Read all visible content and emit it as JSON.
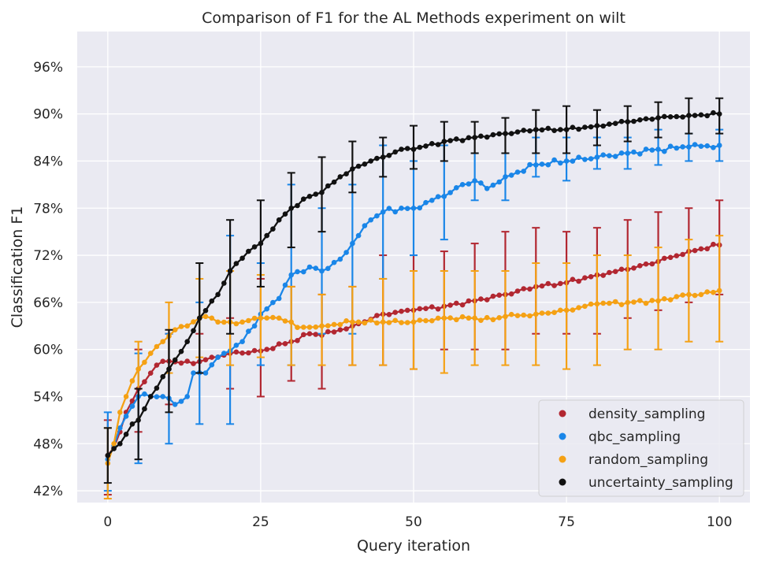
{
  "chart_data": {
    "type": "line",
    "title": "Comparison of F1 for the AL Methods experiment on wilt",
    "xlabel": "Query iteration",
    "ylabel": "Classification F1",
    "xlim": [
      -5,
      105
    ],
    "ylim": [
      40.5,
      100.5
    ],
    "x_ticks": [
      0,
      25,
      50,
      75,
      100
    ],
    "y_ticks": [
      42,
      48,
      54,
      60,
      66,
      72,
      78,
      84,
      90,
      96
    ],
    "y_tick_labels": [
      "42%",
      "48%",
      "54%",
      "60%",
      "66%",
      "72%",
      "78%",
      "84%",
      "90%",
      "96%"
    ],
    "grid": true,
    "legend_position": "lower-right",
    "series": [
      {
        "name": "density_sampling",
        "color": "#b22731",
        "anchors": [
          [
            0,
            46.5
          ],
          [
            1,
            47.5
          ],
          [
            2,
            49.5
          ],
          [
            3,
            52
          ],
          [
            5,
            55
          ],
          [
            8,
            58
          ],
          [
            10,
            58.5
          ],
          [
            14,
            58.2
          ],
          [
            17,
            59
          ],
          [
            20,
            59.5
          ],
          [
            25,
            59.8
          ],
          [
            30,
            61
          ],
          [
            33,
            62
          ],
          [
            35,
            61.8
          ],
          [
            40,
            63
          ],
          [
            45,
            64.5
          ],
          [
            50,
            65
          ],
          [
            55,
            65.5
          ],
          [
            60,
            66.2
          ],
          [
            65,
            67
          ],
          [
            70,
            68
          ],
          [
            75,
            68.5
          ],
          [
            80,
            69.5
          ],
          [
            85,
            70.2
          ],
          [
            90,
            71.2
          ],
          [
            95,
            72.5
          ],
          [
            100,
            73.3
          ]
        ],
        "error_bars": [
          [
            0,
            41.5,
            51
          ],
          [
            5,
            49.5,
            60
          ],
          [
            10,
            53,
            62
          ],
          [
            15,
            57,
            62
          ],
          [
            20,
            55,
            64
          ],
          [
            25,
            54,
            69
          ],
          [
            30,
            56,
            68
          ],
          [
            35,
            55,
            67
          ],
          [
            40,
            58,
            68
          ],
          [
            45,
            58,
            72
          ],
          [
            50,
            57.5,
            72
          ],
          [
            55,
            60,
            72.5
          ],
          [
            60,
            60,
            73.5
          ],
          [
            65,
            60,
            75
          ],
          [
            70,
            62,
            75.5
          ],
          [
            75,
            62,
            75
          ],
          [
            80,
            62,
            75.5
          ],
          [
            85,
            64,
            76.5
          ],
          [
            90,
            65,
            77.5
          ],
          [
            95,
            66,
            78
          ],
          [
            100,
            67,
            79
          ]
        ]
      },
      {
        "name": "qbc_sampling",
        "color": "#1a86e8",
        "anchors": [
          [
            0,
            46
          ],
          [
            2,
            50
          ],
          [
            3,
            51.5
          ],
          [
            5,
            54
          ],
          [
            7,
            54
          ],
          [
            9,
            54
          ],
          [
            11,
            53
          ],
          [
            13,
            54
          ],
          [
            14,
            57
          ],
          [
            16,
            57
          ],
          [
            18,
            59
          ],
          [
            20,
            59.8
          ],
          [
            22,
            61
          ],
          [
            25,
            64.5
          ],
          [
            28,
            66.5
          ],
          [
            30,
            69.5
          ],
          [
            33,
            70.5
          ],
          [
            35,
            70
          ],
          [
            38,
            71.5
          ],
          [
            40,
            73.5
          ],
          [
            43,
            76.5
          ],
          [
            45,
            77.5
          ],
          [
            48,
            78
          ],
          [
            50,
            78
          ],
          [
            53,
            79
          ],
          [
            55,
            79.5
          ],
          [
            58,
            81
          ],
          [
            60,
            81.5
          ],
          [
            62,
            80.5
          ],
          [
            65,
            82
          ],
          [
            70,
            83.5
          ],
          [
            75,
            84
          ],
          [
            80,
            84.5
          ],
          [
            85,
            85
          ],
          [
            90,
            85.5
          ],
          [
            95,
            85.8
          ],
          [
            100,
            86
          ]
        ],
        "error_bars": [
          [
            0,
            42,
            52
          ],
          [
            5,
            45.5,
            59.5
          ],
          [
            10,
            48,
            62
          ],
          [
            15,
            50.5,
            66
          ],
          [
            20,
            50.5,
            74.5
          ],
          [
            25,
            58,
            71
          ],
          [
            30,
            58,
            81
          ],
          [
            35,
            62,
            78
          ],
          [
            40,
            62,
            81
          ],
          [
            45,
            69,
            86
          ],
          [
            50,
            72,
            84
          ],
          [
            55,
            74,
            86
          ],
          [
            60,
            79,
            85
          ],
          [
            65,
            79,
            85
          ],
          [
            70,
            82,
            87
          ],
          [
            75,
            81.5,
            87
          ],
          [
            80,
            83,
            87
          ],
          [
            85,
            83,
            87
          ],
          [
            90,
            83.5,
            88
          ],
          [
            95,
            84,
            87.5
          ],
          [
            100,
            84,
            88
          ]
        ]
      },
      {
        "name": "random_sampling",
        "color": "#f5a114",
        "anchors": [
          [
            0,
            45.5
          ],
          [
            1,
            48
          ],
          [
            2,
            52
          ],
          [
            3,
            54
          ],
          [
            4,
            56
          ],
          [
            5,
            57.5
          ],
          [
            7,
            59.5
          ],
          [
            9,
            61
          ],
          [
            11,
            62.5
          ],
          [
            13,
            63
          ],
          [
            15,
            64
          ],
          [
            17,
            64
          ],
          [
            18,
            63.5
          ],
          [
            20,
            63.5
          ],
          [
            22,
            63.5
          ],
          [
            25,
            64
          ],
          [
            28,
            64
          ],
          [
            30,
            63.5
          ],
          [
            31,
            62.8
          ],
          [
            35,
            63
          ],
          [
            40,
            63.5
          ],
          [
            45,
            63.5
          ],
          [
            50,
            63.5
          ],
          [
            55,
            64
          ],
          [
            60,
            64
          ],
          [
            63,
            63.8
          ],
          [
            65,
            64.2
          ],
          [
            70,
            64.5
          ],
          [
            75,
            65
          ],
          [
            78,
            65.5
          ],
          [
            80,
            65.8
          ],
          [
            85,
            66
          ],
          [
            90,
            66.2
          ],
          [
            95,
            67
          ],
          [
            97,
            67
          ],
          [
            100,
            67.5
          ]
        ],
        "error_bars": [
          [
            0,
            41,
            50
          ],
          [
            5,
            55,
            61
          ],
          [
            10,
            57,
            66
          ],
          [
            15,
            59,
            69
          ],
          [
            20,
            58,
            70
          ],
          [
            25,
            59,
            69.5
          ],
          [
            30,
            58,
            68
          ],
          [
            35,
            58,
            67
          ],
          [
            40,
            58,
            68
          ],
          [
            45,
            58,
            69
          ],
          [
            50,
            57.5,
            70
          ],
          [
            55,
            57,
            70
          ],
          [
            60,
            58,
            70
          ],
          [
            65,
            58,
            70
          ],
          [
            70,
            58,
            71
          ],
          [
            75,
            57.5,
            71
          ],
          [
            80,
            58,
            72
          ],
          [
            85,
            60,
            72
          ],
          [
            90,
            60,
            73
          ],
          [
            95,
            61,
            74
          ],
          [
            100,
            61,
            74.5
          ]
        ]
      },
      {
        "name": "uncertainty_sampling",
        "color": "#111111",
        "anchors": [
          [
            0,
            46.5
          ],
          [
            2,
            48
          ],
          [
            4,
            50.5
          ],
          [
            5,
            51
          ],
          [
            7,
            54
          ],
          [
            10,
            57.5
          ],
          [
            13,
            61
          ],
          [
            15,
            64
          ],
          [
            18,
            67
          ],
          [
            20,
            70
          ],
          [
            23,
            72.5
          ],
          [
            25,
            73.5
          ],
          [
            28,
            76.5
          ],
          [
            30,
            78
          ],
          [
            33,
            79.5
          ],
          [
            35,
            80
          ],
          [
            38,
            82
          ],
          [
            40,
            83
          ],
          [
            43,
            84
          ],
          [
            45,
            84.5
          ],
          [
            48,
            85.5
          ],
          [
            50,
            85.5
          ],
          [
            55,
            86.5
          ],
          [
            60,
            87
          ],
          [
            65,
            87.5
          ],
          [
            70,
            88
          ],
          [
            75,
            88
          ],
          [
            80,
            88.5
          ],
          [
            85,
            89
          ],
          [
            90,
            89.5
          ],
          [
            95,
            89.8
          ],
          [
            100,
            90
          ]
        ],
        "error_bars": [
          [
            0,
            43,
            50
          ],
          [
            5,
            46,
            55
          ],
          [
            10,
            52,
            62.5
          ],
          [
            15,
            57,
            71
          ],
          [
            20,
            62,
            76.5
          ],
          [
            25,
            68,
            79
          ],
          [
            30,
            73,
            82.5
          ],
          [
            35,
            75,
            84.5
          ],
          [
            40,
            80,
            86.5
          ],
          [
            45,
            82,
            87
          ],
          [
            50,
            83,
            88.5
          ],
          [
            55,
            84,
            89
          ],
          [
            60,
            85,
            89
          ],
          [
            65,
            85,
            89.5
          ],
          [
            70,
            85,
            90.5
          ],
          [
            75,
            85,
            91
          ],
          [
            80,
            86,
            90.5
          ],
          [
            85,
            86.5,
            91
          ],
          [
            90,
            87,
            91.5
          ],
          [
            95,
            87.5,
            92
          ],
          [
            100,
            87.5,
            92
          ]
        ]
      }
    ]
  }
}
